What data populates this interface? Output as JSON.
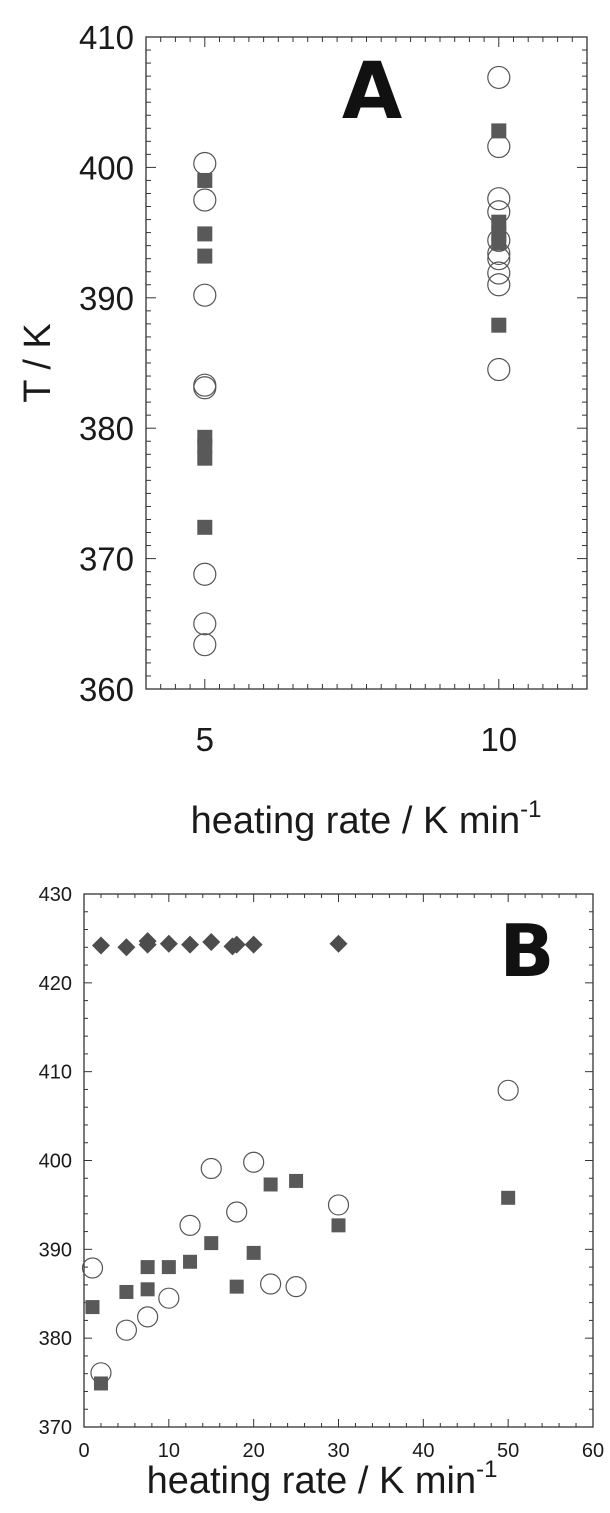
{
  "chart_data": [
    {
      "type": "scatter",
      "panel_label": "A",
      "ylabel": "T / K",
      "xlabel": "heating rate / K min",
      "xlabel_superscript": "-1",
      "ylim": [
        360,
        410
      ],
      "xlim": [
        4,
        11.5
      ],
      "yticks": [
        360,
        370,
        380,
        390,
        400,
        410
      ],
      "xticks": [
        5,
        10
      ],
      "ytick_labels": [
        "360",
        "370",
        "380",
        "390",
        "400",
        "410"
      ],
      "xtick_labels": [
        "5",
        "10"
      ],
      "grid": false,
      "series": [
        {
          "marker": "open-circle",
          "color": "#555555",
          "points": [
            [
              5,
              400.3
            ],
            [
              5,
              397.5
            ],
            [
              5,
              390.2
            ],
            [
              5,
              383.3
            ],
            [
              5,
              383.1
            ],
            [
              5,
              368.8
            ],
            [
              5,
              365.0
            ],
            [
              5,
              363.4
            ],
            [
              10,
              406.9
            ],
            [
              10,
              401.6
            ],
            [
              10,
              397.6
            ],
            [
              10,
              396.6
            ],
            [
              10,
              394.4
            ],
            [
              10,
              393.4
            ],
            [
              10,
              393.0
            ],
            [
              10,
              391.9
            ],
            [
              10,
              391.0
            ],
            [
              10,
              384.5
            ]
          ]
        },
        {
          "marker": "filled-square",
          "color": "#595959",
          "points": [
            [
              5,
              399.0
            ],
            [
              5,
              394.9
            ],
            [
              5,
              393.2
            ],
            [
              5,
              379.3
            ],
            [
              5,
              378.6
            ],
            [
              5,
              377.7
            ],
            [
              5,
              372.4
            ],
            [
              10,
              402.8
            ],
            [
              10,
              395.8
            ],
            [
              10,
              394.9
            ],
            [
              10,
              394.2
            ],
            [
              10,
              387.9
            ]
          ]
        }
      ]
    },
    {
      "type": "scatter",
      "panel_label": "B",
      "xlabel": "heating rate / K min",
      "xlabel_superscript": "-1",
      "ylabel": "",
      "xlim": [
        0,
        60
      ],
      "ylim": [
        370,
        430
      ],
      "xticks": [
        0,
        10,
        20,
        30,
        40,
        50,
        60
      ],
      "yticks": [
        370,
        380,
        390,
        400,
        410,
        420,
        430
      ],
      "xtick_labels": [
        "0",
        "10",
        "20",
        "30",
        "40",
        "50",
        "60"
      ],
      "ytick_labels": [
        "370",
        "380",
        "390",
        "400",
        "410",
        "420",
        "430"
      ],
      "grid": false,
      "series": [
        {
          "marker": "filled-diamond",
          "color": "#4d4d4d",
          "points": [
            [
              2,
              424.2
            ],
            [
              5,
              424.0
            ],
            [
              7.5,
              424.3
            ],
            [
              7.5,
              424.7
            ],
            [
              10,
              424.4
            ],
            [
              12.5,
              424.3
            ],
            [
              15,
              424.6
            ],
            [
              17.5,
              424.1
            ],
            [
              18,
              424.3
            ],
            [
              20,
              424.3
            ],
            [
              30,
              424.4
            ]
          ]
        },
        {
          "marker": "open-circle",
          "color": "#555555",
          "points": [
            [
              1,
              387.9
            ],
            [
              2,
              376.1
            ],
            [
              5,
              380.9
            ],
            [
              7.5,
              382.4
            ],
            [
              10,
              384.5
            ],
            [
              12.5,
              392.7
            ],
            [
              15,
              399.1
            ],
            [
              18,
              394.2
            ],
            [
              20,
              399.8
            ],
            [
              22,
              386.1
            ],
            [
              25,
              385.8
            ],
            [
              30,
              395.0
            ],
            [
              50,
              407.9
            ]
          ]
        },
        {
          "marker": "filled-square",
          "color": "#595959",
          "points": [
            [
              1,
              383.5
            ],
            [
              2,
              374.9
            ],
            [
              5,
              385.2
            ],
            [
              7.5,
              385.5
            ],
            [
              7.5,
              388.0
            ],
            [
              10,
              388.0
            ],
            [
              12.5,
              388.6
            ],
            [
              15,
              390.7
            ],
            [
              18,
              385.8
            ],
            [
              20,
              389.6
            ],
            [
              22,
              397.3
            ],
            [
              25,
              397.7
            ],
            [
              30,
              392.7
            ],
            [
              50,
              395.8
            ]
          ]
        }
      ]
    }
  ]
}
